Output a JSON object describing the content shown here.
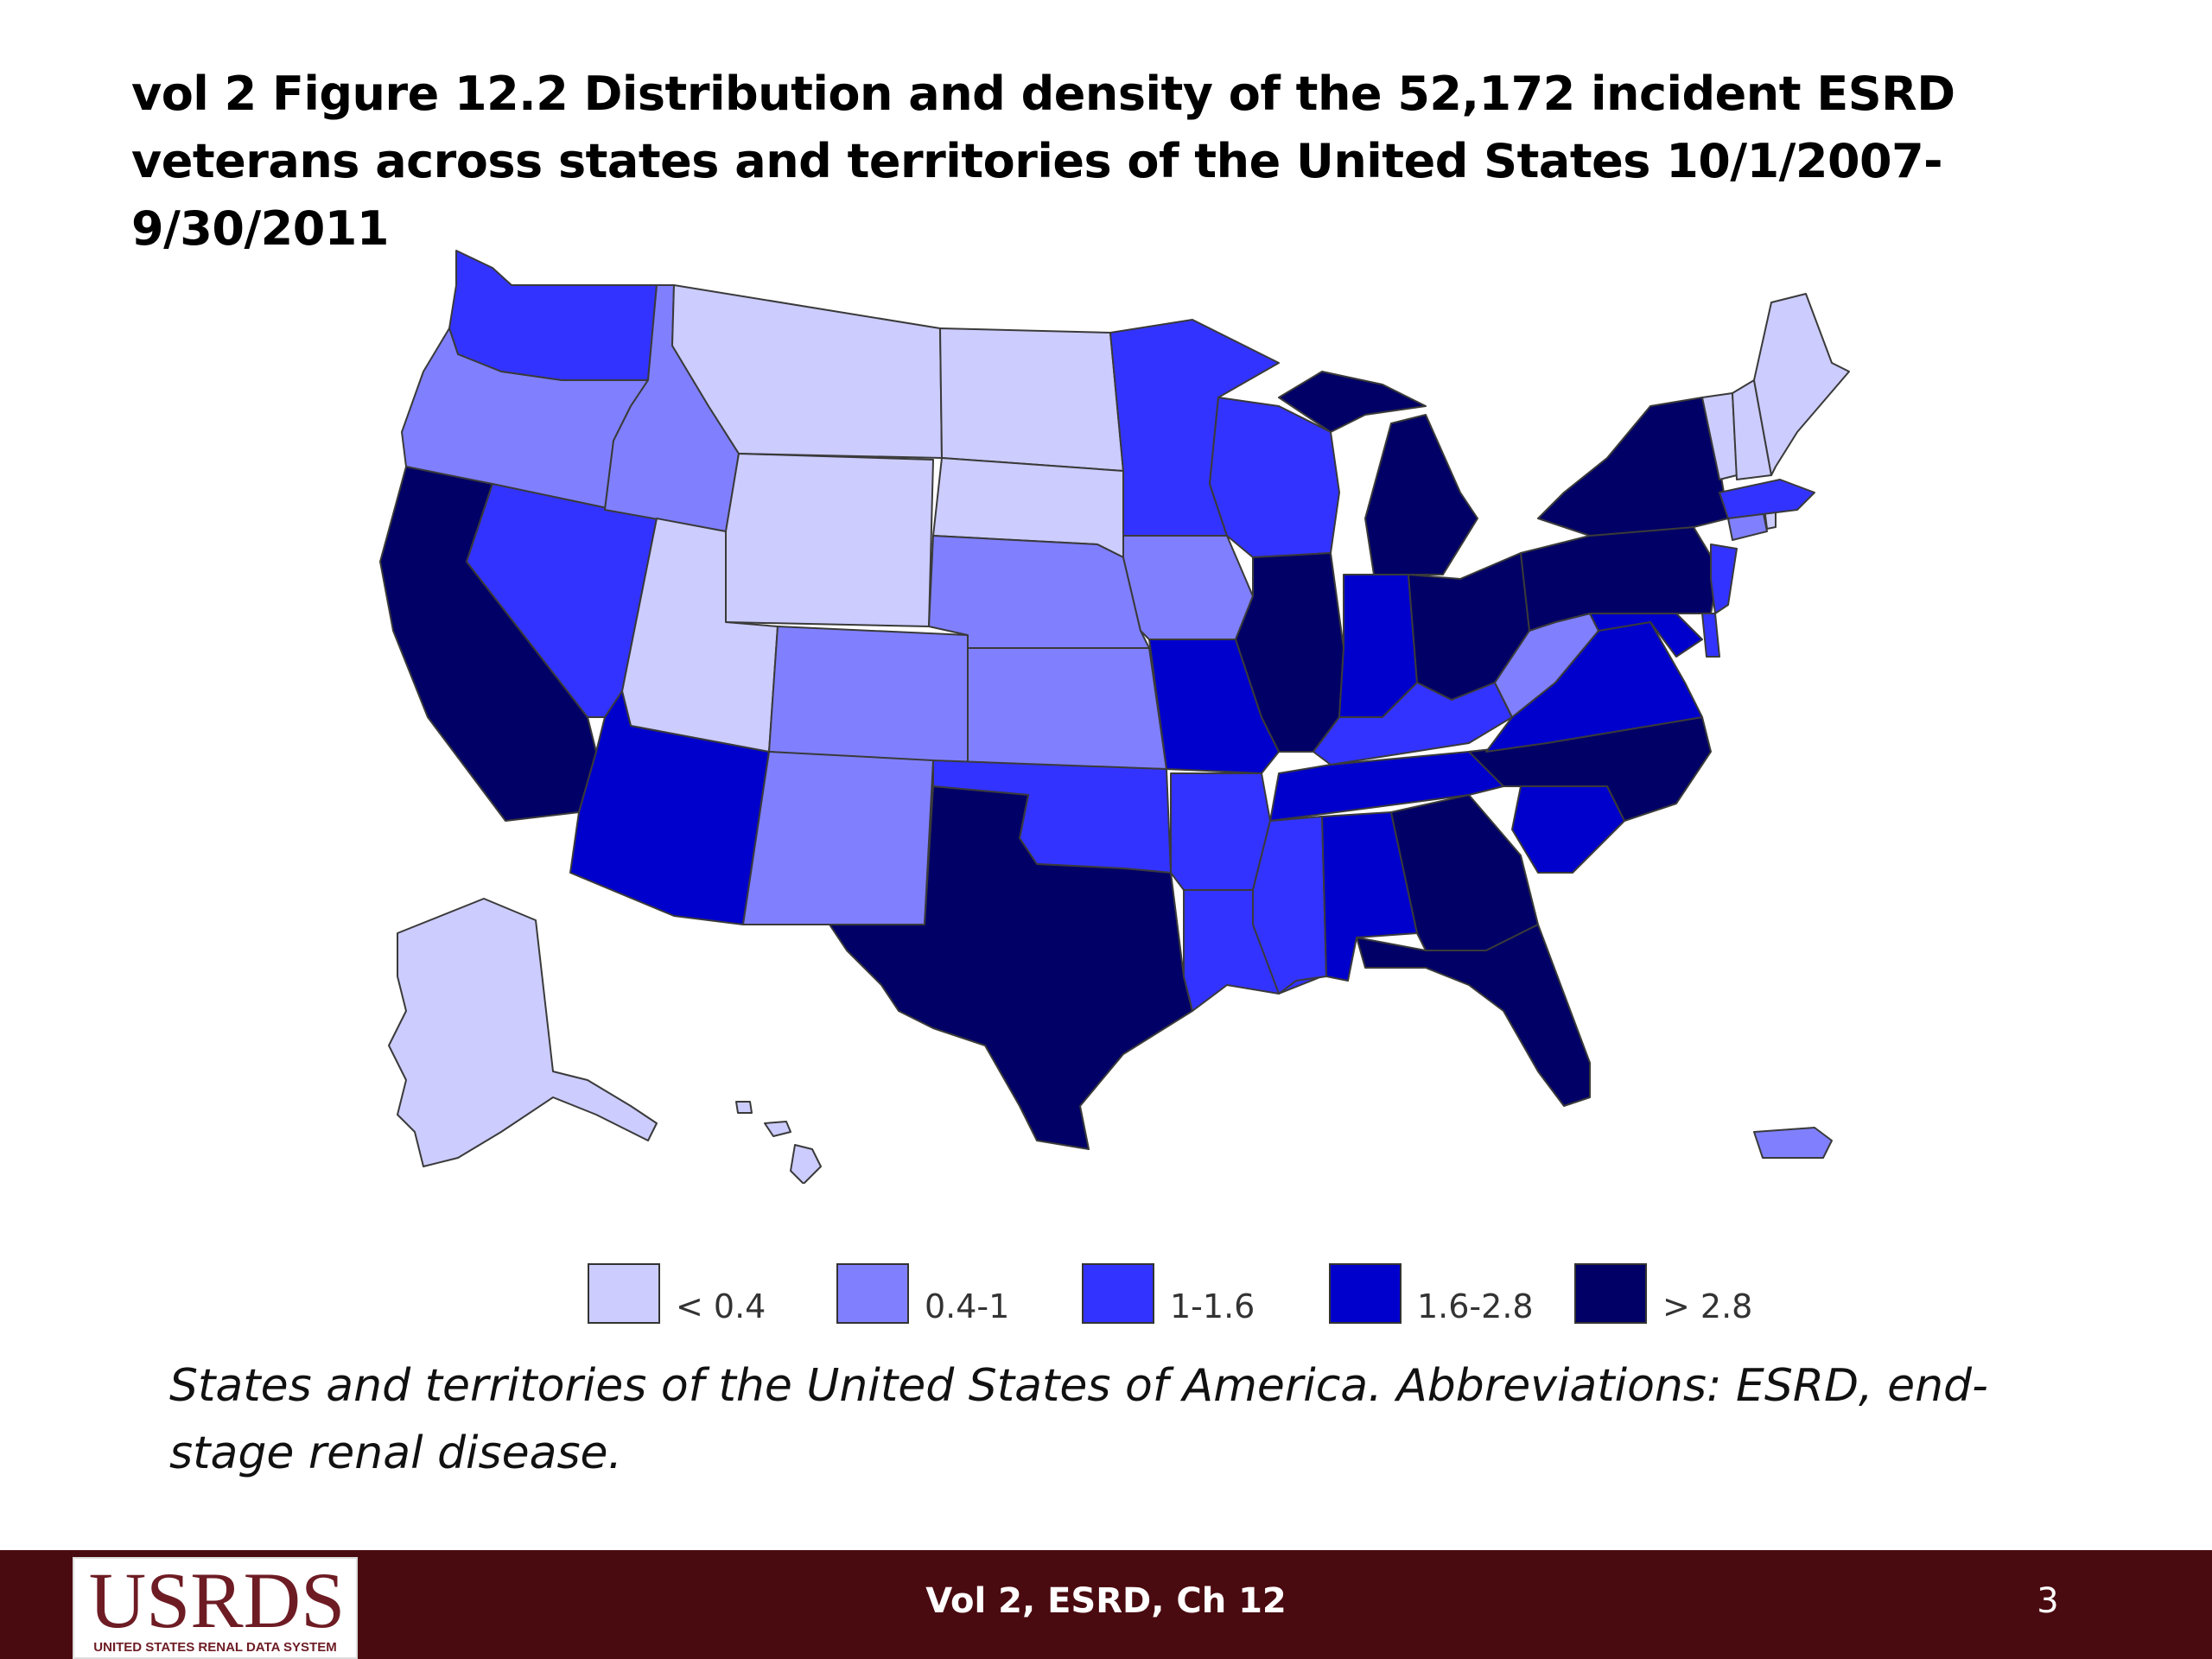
{
  "title": "vol 2 Figure 12.2  Distribution and density of the 52,172 incident ESRD veterans across states and territories of the United States 10/1/2007-9/30/2011",
  "caption": "States and territories of the United States of America. Abbreviations: ESRD, end-stage renal disease.",
  "colors": {
    "lt04": "#ccccff",
    "c04_1": "#8080ff",
    "c1_16": "#3333ff",
    "c16_28": "#0000cc",
    "gt28": "#000066"
  },
  "legend": [
    {
      "label": "< 0.4",
      "color": "#ccccff"
    },
    {
      "label": "0.4-1",
      "color": "#8080ff"
    },
    {
      "label": "1-1.6",
      "color": "#3333ff"
    },
    {
      "label": "1.6-2.8",
      "color": "#0000cc"
    },
    {
      "label": "> 2.8",
      "color": "#000066"
    }
  ],
  "footer": {
    "logo_text": "USRDS",
    "logo_subtext": "UNITED STATES RENAL DATA SYSTEM",
    "center_text": "Vol 2, ESRD, Ch 12",
    "page_number": "3"
  }
}
